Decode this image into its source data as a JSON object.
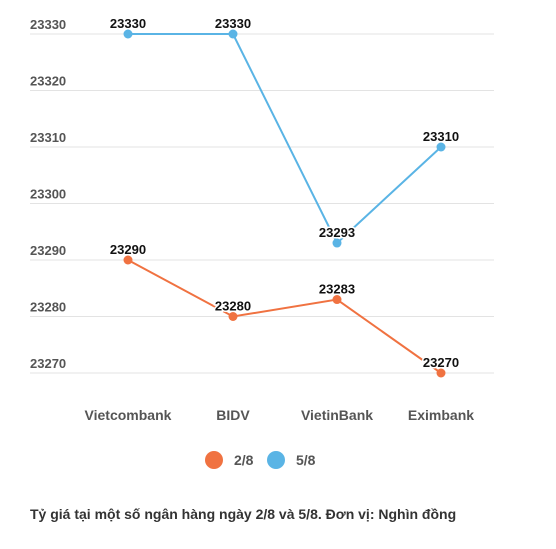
{
  "chart_data": {
    "type": "line",
    "categories": [
      "Vietcombank",
      "BIDV",
      "VietinBank",
      "Eximbank"
    ],
    "series": [
      {
        "name": "2/8",
        "color": "#f07241",
        "values": [
          23290,
          23280,
          23283,
          23270
        ]
      },
      {
        "name": "5/8",
        "color": "#5ab4e5",
        "values": [
          23330,
          23330,
          23293,
          23310
        ]
      }
    ],
    "yticks": [
      23270,
      23280,
      23290,
      23300,
      23310,
      23320,
      23330
    ],
    "ylim": [
      23270,
      23330
    ],
    "grid": true,
    "legend_position": "bottom-center"
  },
  "caption": "Tỷ giá tại một số ngân hàng ngày 2/8 và 5/8. Đơn vị: Nghìn đồng"
}
